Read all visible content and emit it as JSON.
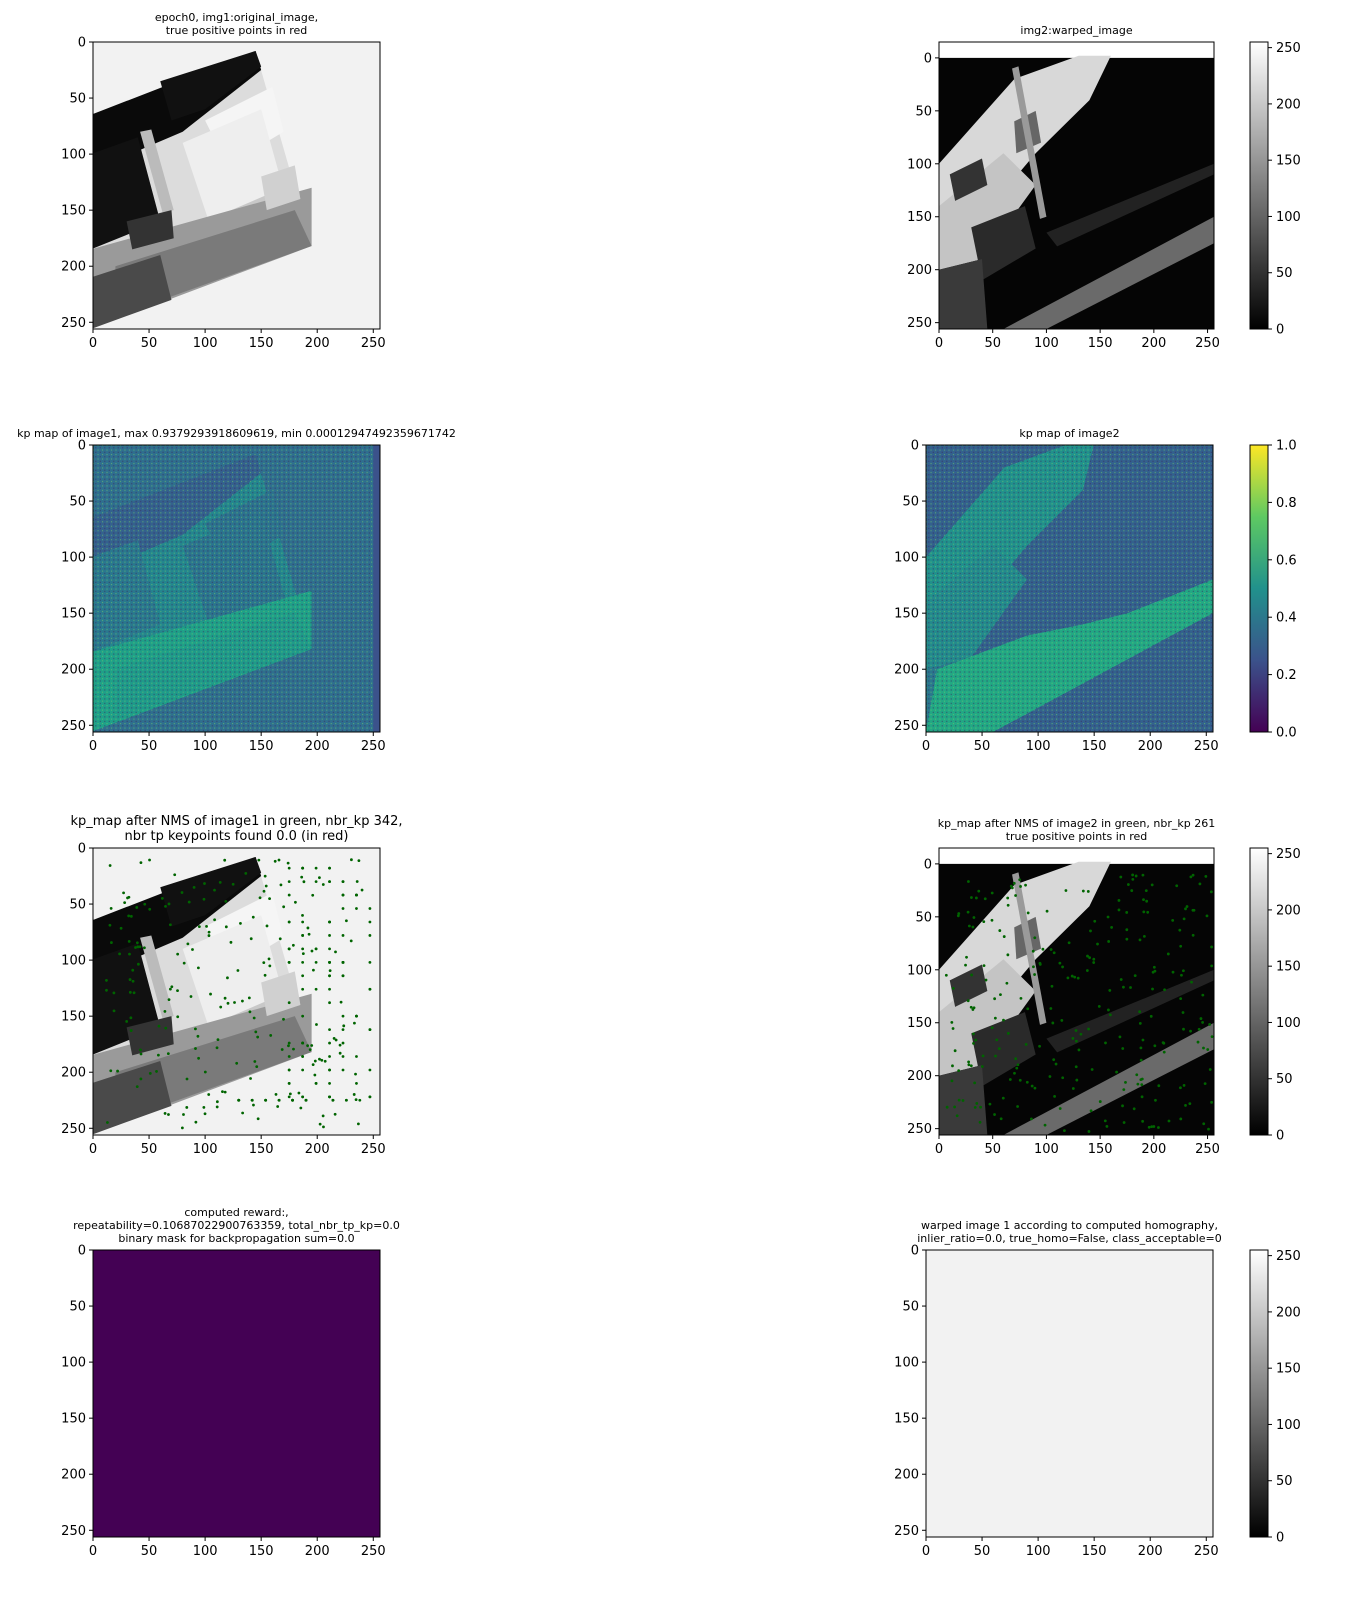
{
  "figure": {
    "panels": [
      {
        "id": "p1",
        "title_lines": [
          "epoch0, img1:original_image,",
          "true positive points in red"
        ],
        "image": "original-grayscale-aerial-image",
        "xlim": [
          0,
          256
        ],
        "ylim": [
          256,
          0
        ],
        "xticks": [
          0,
          50,
          100,
          150,
          200,
          250
        ],
        "yticks": [
          0,
          50,
          100,
          150,
          200,
          250
        ]
      },
      {
        "id": "p2",
        "title_lines": [
          "img2:warped_image"
        ],
        "image": "warped-grayscale-aerial-image",
        "xlim": [
          0,
          256
        ],
        "ylim": [
          256,
          -15
        ],
        "xticks": [
          0,
          50,
          100,
          150,
          200,
          250
        ],
        "yticks": [
          0,
          50,
          100,
          150,
          200,
          250
        ],
        "colorbar": {
          "range": [
            0,
            255
          ],
          "ticks": [
            0,
            50,
            100,
            150,
            200,
            250
          ],
          "cmap": "gray"
        }
      },
      {
        "id": "p3",
        "title_lines": [
          "kp map of image1, max 0.9379293918609619, min 0.00012947492359671742"
        ],
        "image": "keypoint-probability-map-viridis",
        "xlim": [
          0,
          256
        ],
        "ylim": [
          256,
          0
        ],
        "xticks": [
          0,
          50,
          100,
          150,
          200,
          250
        ],
        "yticks": [
          0,
          50,
          100,
          150,
          200,
          250
        ]
      },
      {
        "id": "p4",
        "title_lines": [
          "kp map of image2"
        ],
        "image": "keypoint-probability-map-viridis",
        "xlim": [
          0,
          256
        ],
        "ylim": [
          256,
          0
        ],
        "xticks": [
          0,
          50,
          100,
          150,
          200,
          250
        ],
        "yticks": [
          0,
          50,
          100,
          150,
          200,
          250
        ],
        "colorbar": {
          "range": [
            0,
            1
          ],
          "ticks": [
            "0.0",
            "0.2",
            "0.4",
            "0.6",
            "0.8",
            "1.0"
          ],
          "cmap": "viridis"
        }
      },
      {
        "id": "p5",
        "title_lines": [
          "kp_map after NMS of image1 in green, nbr_kp 342,",
          "nbr tp keypoints found 0.0 (in red)"
        ],
        "image": "original-grayscale-aerial-image-with-green-keypoints",
        "xlim": [
          0,
          256
        ],
        "ylim": [
          256,
          0
        ],
        "xticks": [
          0,
          50,
          100,
          150,
          200,
          250
        ],
        "yticks": [
          0,
          50,
          100,
          150,
          200,
          250
        ]
      },
      {
        "id": "p6",
        "title_lines": [
          "kp_map after NMS of image2 in green, nbr_kp 261",
          "true positive points in red"
        ],
        "image": "warped-grayscale-aerial-image-with-green-keypoints",
        "xlim": [
          0,
          256
        ],
        "ylim": [
          256,
          -15
        ],
        "xticks": [
          0,
          50,
          100,
          150,
          200,
          250
        ],
        "yticks": [
          0,
          50,
          100,
          150,
          200,
          250
        ],
        "colorbar": {
          "range": [
            0,
            255
          ],
          "ticks": [
            0,
            50,
            100,
            150,
            200,
            250
          ],
          "cmap": "gray"
        }
      },
      {
        "id": "p7",
        "title_lines": [
          "computed reward:,",
          "repeatability=0.10687022900763359, total_nbr_tp_kp=0.0",
          "binary mask for backpropagation sum=0.0"
        ],
        "image": "uniform-dark-purple",
        "xlim": [
          0,
          256
        ],
        "ylim": [
          256,
          0
        ],
        "xticks": [
          0,
          50,
          100,
          150,
          200,
          250
        ],
        "yticks": [
          0,
          50,
          100,
          150,
          200,
          250
        ]
      },
      {
        "id": "p8",
        "title_lines": [
          "warped image 1 according to computed homography,",
          "inlier_ratio=0.0, true_homo=False, class_acceptable=0"
        ],
        "image": "uniform-light-gray",
        "xlim": [
          0,
          256
        ],
        "ylim": [
          256,
          0
        ],
        "xticks": [
          0,
          50,
          100,
          150,
          200,
          250
        ],
        "yticks": [
          0,
          50,
          100,
          150,
          200,
          250
        ],
        "colorbar": {
          "range": [
            0,
            255
          ],
          "ticks": [
            0,
            50,
            100,
            150,
            200,
            250
          ],
          "cmap": "gray"
        }
      }
    ]
  },
  "chart_data": [
    {
      "type": "heatmap",
      "title": "epoch0, img1:original_image, true positive points in red",
      "xlim": [
        0,
        256
      ],
      "ylim": [
        256,
        0
      ]
    },
    {
      "type": "heatmap",
      "title": "img2:warped_image",
      "xlim": [
        0,
        256
      ],
      "ylim": [
        256,
        0
      ],
      "colorbar_range": [
        0,
        255
      ]
    },
    {
      "type": "heatmap",
      "title": "kp map of image1, max 0.9379293918609619, min 0.00012947492359671742",
      "xlim": [
        0,
        256
      ],
      "ylim": [
        256,
        0
      ]
    },
    {
      "type": "heatmap",
      "title": "kp map of image2",
      "xlim": [
        0,
        256
      ],
      "ylim": [
        256,
        0
      ],
      "colorbar_range": [
        0,
        1
      ]
    },
    {
      "type": "scatter",
      "title": "kp_map after NMS of image1 in green, nbr_kp 342, nbr tp keypoints found 0.0 (in red)",
      "nbr_kp": 342,
      "nbr_tp": 0.0,
      "point_color": "#006400",
      "xlim": [
        0,
        256
      ],
      "ylim": [
        256,
        0
      ]
    },
    {
      "type": "scatter",
      "title": "kp_map after NMS of image2 in green, nbr_kp 261 true positive points in red",
      "nbr_kp": 261,
      "point_color": "#006400",
      "xlim": [
        0,
        256
      ],
      "ylim": [
        256,
        0
      ],
      "colorbar_range": [
        0,
        255
      ]
    },
    {
      "type": "heatmap",
      "title": "computed reward:, repeatability=0.10687022900763359, total_nbr_tp_kp=0.0 binary mask for backpropagation sum=0.0",
      "repeatability": 0.10687022900763359,
      "total_nbr_tp_kp": 0.0,
      "mask_sum": 0.0,
      "fill": "#440154"
    },
    {
      "type": "heatmap",
      "title": "warped image 1 according to computed homography, inlier_ratio=0.0, true_homo=False, class_acceptable=0",
      "inlier_ratio": 0.0,
      "true_homo": "False",
      "class_acceptable": 0,
      "fill": "#f2f2f2",
      "colorbar_range": [
        0,
        255
      ]
    }
  ]
}
